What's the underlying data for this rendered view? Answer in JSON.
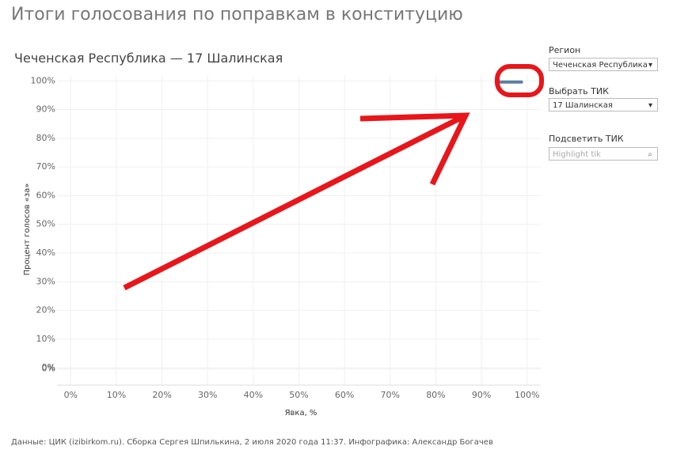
{
  "chart_data": {
    "type": "scatter",
    "title": "Итоги голосования по поправкам в конституцию",
    "subtitle": "Чеченская Республика — 17 Шалинская",
    "x_label": "Явка, %",
    "y_label": "Процент голосов «за»",
    "footer": "Данные: ЦИК (izibirkom.ru). Сборка Сергея Шпилькина, 2 июля 2020 года 11:37. Инфографика: Александр Богачев",
    "series": [
      {
        "name": "17 Шалинская",
        "color": "#5b7ea3",
        "x": [
          96
        ],
        "values": [
          99.6
        ]
      }
    ],
    "xlim": [
      -3,
      103
    ],
    "ylim": [
      -6,
      102
    ],
    "xticks": [
      {
        "value": 0,
        "label": "0%"
      },
      {
        "value": 10,
        "label": "10%"
      },
      {
        "value": 20,
        "label": "20%"
      },
      {
        "value": 30,
        "label": "30%"
      },
      {
        "value": 40,
        "label": "40%"
      },
      {
        "value": 50,
        "label": "50%"
      },
      {
        "value": 60,
        "label": "60%"
      },
      {
        "value": 70,
        "label": "70%"
      },
      {
        "value": 80,
        "label": "80%"
      },
      {
        "value": 90,
        "label": "90%"
      },
      {
        "value": 100,
        "label": "100%"
      }
    ],
    "yticks": [
      {
        "value": 100,
        "label": "100%"
      },
      {
        "value": 90,
        "label": "90%"
      },
      {
        "value": 80,
        "label": "80%"
      },
      {
        "value": 70,
        "label": "70%"
      },
      {
        "value": 60,
        "label": "60%"
      },
      {
        "value": 50,
        "label": "50%"
      },
      {
        "value": 40,
        "label": "40%"
      },
      {
        "value": 30,
        "label": "30%"
      },
      {
        "value": 20,
        "label": "20%"
      },
      {
        "value": 10,
        "label": "10%"
      },
      {
        "value": 0,
        "label": "0%"
      },
      {
        "value": -0.4,
        "label": "0%"
      }
    ],
    "grid": true
  },
  "filters": {
    "region_label": "Регион",
    "region_value": "Чеченская Республика",
    "tik_label": "Выбрать ТИК",
    "tik_value": "17 Шалинская",
    "highlight_label": "Подсветить ТИК",
    "highlight_placeholder": "Highlight tik"
  }
}
